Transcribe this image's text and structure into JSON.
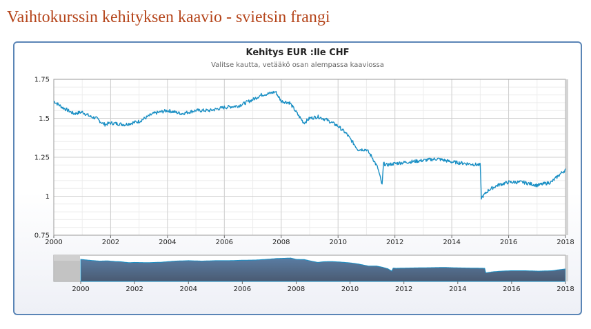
{
  "page": {
    "title": "Vaihtokurssin kehityksen kaavio - svietsin frangi"
  },
  "chart_data": {
    "type": "line",
    "title": "Kehitys EUR :lle CHF",
    "subtitle": "Valitse kautta, vetääkö osan alempassa kaaviossa",
    "xlabel": "",
    "ylabel": "",
    "xlim": [
      2000,
      2018
    ],
    "ylim": [
      0.75,
      1.75
    ],
    "x_ticks": [
      "2000",
      "2002",
      "2004",
      "2006",
      "2008",
      "2010",
      "2012",
      "2014",
      "2016",
      "2018"
    ],
    "y_ticks": [
      "1.75",
      "1.5",
      "1.25",
      "1",
      "0.75"
    ],
    "grid": true,
    "legend": "none",
    "line_color": "#1a8fc4",
    "series": [
      {
        "x": [
          2000.0,
          2000.3,
          2000.7,
          2001.0,
          2001.3,
          2001.5,
          2001.7,
          2001.8,
          2002.0,
          2002.5,
          2003.0,
          2003.2,
          2003.5,
          2004.0,
          2004.5,
          2005.0,
          2005.5,
          2006.0,
          2006.5,
          2007.0,
          2007.3,
          2007.6,
          2007.8,
          2008.0,
          2008.3,
          2008.6,
          2008.8,
          2009.0,
          2009.3,
          2009.6,
          2010.0,
          2010.3,
          2010.5,
          2010.7,
          2011.0,
          2011.2,
          2011.4,
          2011.55,
          2011.6,
          2011.7,
          2012.0,
          2012.5,
          2013.0,
          2013.5,
          2014.0,
          2014.5,
          2015.0,
          2015.04,
          2015.3,
          2015.6,
          2016.0,
          2016.5,
          2017.0,
          2017.5,
          2017.8,
          2018.0
        ],
        "y": [
          1.61,
          1.57,
          1.53,
          1.54,
          1.51,
          1.5,
          1.47,
          1.46,
          1.47,
          1.46,
          1.48,
          1.5,
          1.53,
          1.55,
          1.53,
          1.55,
          1.55,
          1.57,
          1.58,
          1.62,
          1.65,
          1.66,
          1.67,
          1.61,
          1.6,
          1.52,
          1.47,
          1.5,
          1.51,
          1.49,
          1.45,
          1.4,
          1.35,
          1.3,
          1.3,
          1.25,
          1.18,
          1.07,
          1.21,
          1.2,
          1.21,
          1.22,
          1.23,
          1.24,
          1.22,
          1.21,
          1.2,
          0.99,
          1.04,
          1.07,
          1.09,
          1.09,
          1.07,
          1.09,
          1.14,
          1.17
        ]
      }
    ],
    "navigator": {
      "x_ticks": [
        "2000",
        "2002",
        "2004",
        "2006",
        "2008",
        "2010",
        "2012",
        "2014",
        "2016",
        "2018"
      ],
      "xlim": [
        1999,
        2018
      ]
    }
  }
}
